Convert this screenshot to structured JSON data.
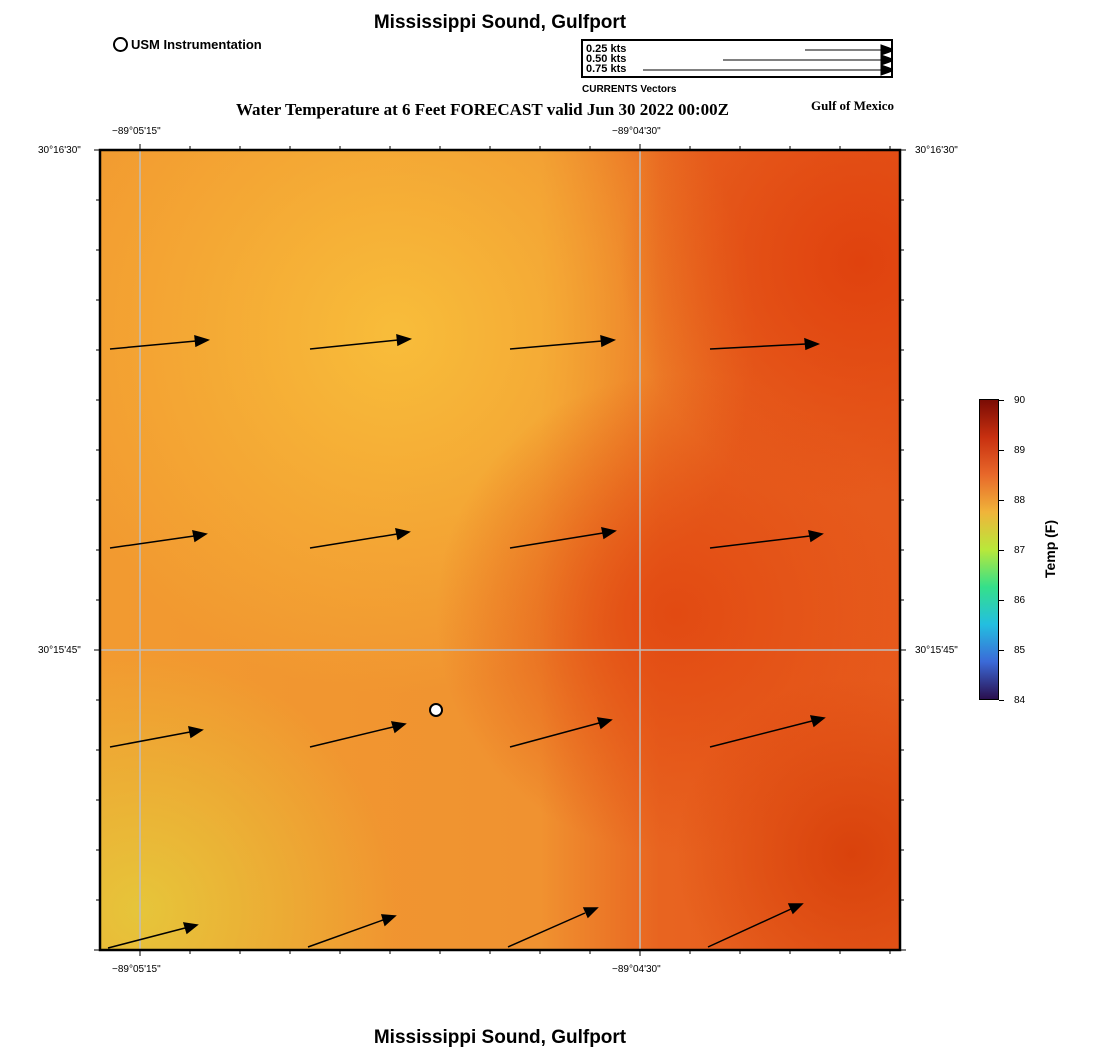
{
  "header": {
    "title": "Mississippi Sound, Gulfport",
    "subtitle": "Water Temperature at 6 Feet FORECAST valid Jun 30 2022 00:00Z",
    "region_label": "Gulf of Mexico",
    "footer_title": "Mississippi Sound, Gulfport"
  },
  "legend": {
    "station_label": "USM Instrumentation",
    "vector_title": "CURRENTS Vectors",
    "vector_scales": [
      "0.25 kts",
      "0.50 kts",
      "0.75 kts"
    ]
  },
  "map": {
    "lon_labels": [
      "−89°05'15\"",
      "−89°04'30\""
    ],
    "lat_labels": [
      "30°16'30\"",
      "30°15'45\""
    ],
    "station_marker": "USM Instrumentation"
  },
  "colorbar": {
    "label": "Temp (F)",
    "ticks": [
      "90",
      "89",
      "88",
      "87",
      "86",
      "85",
      "84"
    ],
    "min": 84,
    "max": 90,
    "colors": [
      "#2a0f4e",
      "#3b6ad8",
      "#23bfe0",
      "#35e08a",
      "#b9e83a",
      "#f0b43a",
      "#e8682a",
      "#c83010",
      "#7a0c04"
    ]
  }
}
